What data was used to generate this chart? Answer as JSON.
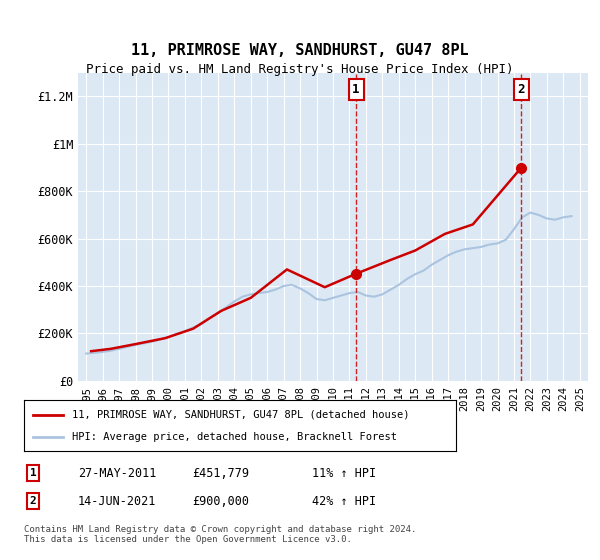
{
  "title": "11, PRIMROSE WAY, SANDHURST, GU47 8PL",
  "subtitle": "Price paid vs. HM Land Registry's House Price Index (HPI)",
  "background_color": "#dce9f5",
  "plot_bg_color": "#dce9f5",
  "ylabel_ticks": [
    "£0",
    "£200K",
    "£400K",
    "£600K",
    "£800K",
    "£1M",
    "£1.2M"
  ],
  "ytick_values": [
    0,
    200000,
    400000,
    600000,
    800000,
    1000000,
    1200000
  ],
  "ylim": [
    0,
    1300000
  ],
  "xlim_start": 1994.5,
  "xlim_end": 2025.5,
  "hpi_color": "#aac4e0",
  "price_color": "#cc0000",
  "dashed_line_color": "#cc0000",
  "marker1_x": 2011.4,
  "marker1_y": 451779,
  "marker2_x": 2021.45,
  "marker2_y": 900000,
  "legend_label1": "11, PRIMROSE WAY, SANDHURST, GU47 8PL (detached house)",
  "legend_label2": "HPI: Average price, detached house, Bracknell Forest",
  "table_rows": [
    [
      "1",
      "27-MAY-2011",
      "£451,779",
      "11% ↑ HPI"
    ],
    [
      "2",
      "14-JUN-2021",
      "£900,000",
      "42% ↑ HPI"
    ]
  ],
  "footnote": "Contains HM Land Registry data © Crown copyright and database right 2024.\nThis data is licensed under the Open Government Licence v3.0.",
  "hpi_data_x": [
    1995,
    1995.5,
    1996,
    1996.5,
    1997,
    1997.5,
    1998,
    1998.5,
    1999,
    1999.5,
    2000,
    2000.5,
    2001,
    2001.5,
    2002,
    2002.5,
    2003,
    2003.5,
    2004,
    2004.5,
    2005,
    2005.5,
    2006,
    2006.5,
    2007,
    2007.5,
    2008,
    2008.5,
    2009,
    2009.5,
    2010,
    2010.5,
    2011,
    2011.5,
    2012,
    2012.5,
    2013,
    2013.5,
    2014,
    2014.5,
    2015,
    2015.5,
    2016,
    2016.5,
    2017,
    2017.5,
    2018,
    2018.5,
    2019,
    2019.5,
    2020,
    2020.5,
    2021,
    2021.5,
    2022,
    2022.5,
    2023,
    2023.5,
    2024,
    2024.5
  ],
  "hpi_data_y": [
    115000,
    118000,
    122000,
    127000,
    135000,
    143000,
    152000,
    158000,
    165000,
    175000,
    185000,
    198000,
    210000,
    225000,
    240000,
    265000,
    285000,
    310000,
    335000,
    355000,
    365000,
    370000,
    375000,
    385000,
    400000,
    405000,
    390000,
    370000,
    345000,
    340000,
    350000,
    360000,
    370000,
    375000,
    360000,
    355000,
    365000,
    385000,
    405000,
    430000,
    450000,
    465000,
    490000,
    510000,
    530000,
    545000,
    555000,
    560000,
    565000,
    575000,
    580000,
    595000,
    640000,
    690000,
    710000,
    700000,
    685000,
    680000,
    690000,
    695000
  ],
  "price_data_x": [
    1995.3,
    1996.5,
    1998.0,
    1999.8,
    2001.5,
    2003.2,
    2005.0,
    2007.2,
    2009.5,
    2011.4,
    2013.5,
    2015.0,
    2016.8,
    2018.5,
    2021.45
  ],
  "price_data_y": [
    125000,
    135000,
    155000,
    180000,
    220000,
    295000,
    350000,
    470000,
    395000,
    451779,
    510000,
    550000,
    620000,
    660000,
    900000
  ],
  "xtick_years": [
    1995,
    1996,
    1997,
    1998,
    1999,
    2000,
    2001,
    2002,
    2003,
    2004,
    2005,
    2006,
    2007,
    2008,
    2009,
    2010,
    2011,
    2012,
    2013,
    2014,
    2015,
    2016,
    2017,
    2018,
    2019,
    2020,
    2021,
    2022,
    2023,
    2024,
    2025
  ]
}
